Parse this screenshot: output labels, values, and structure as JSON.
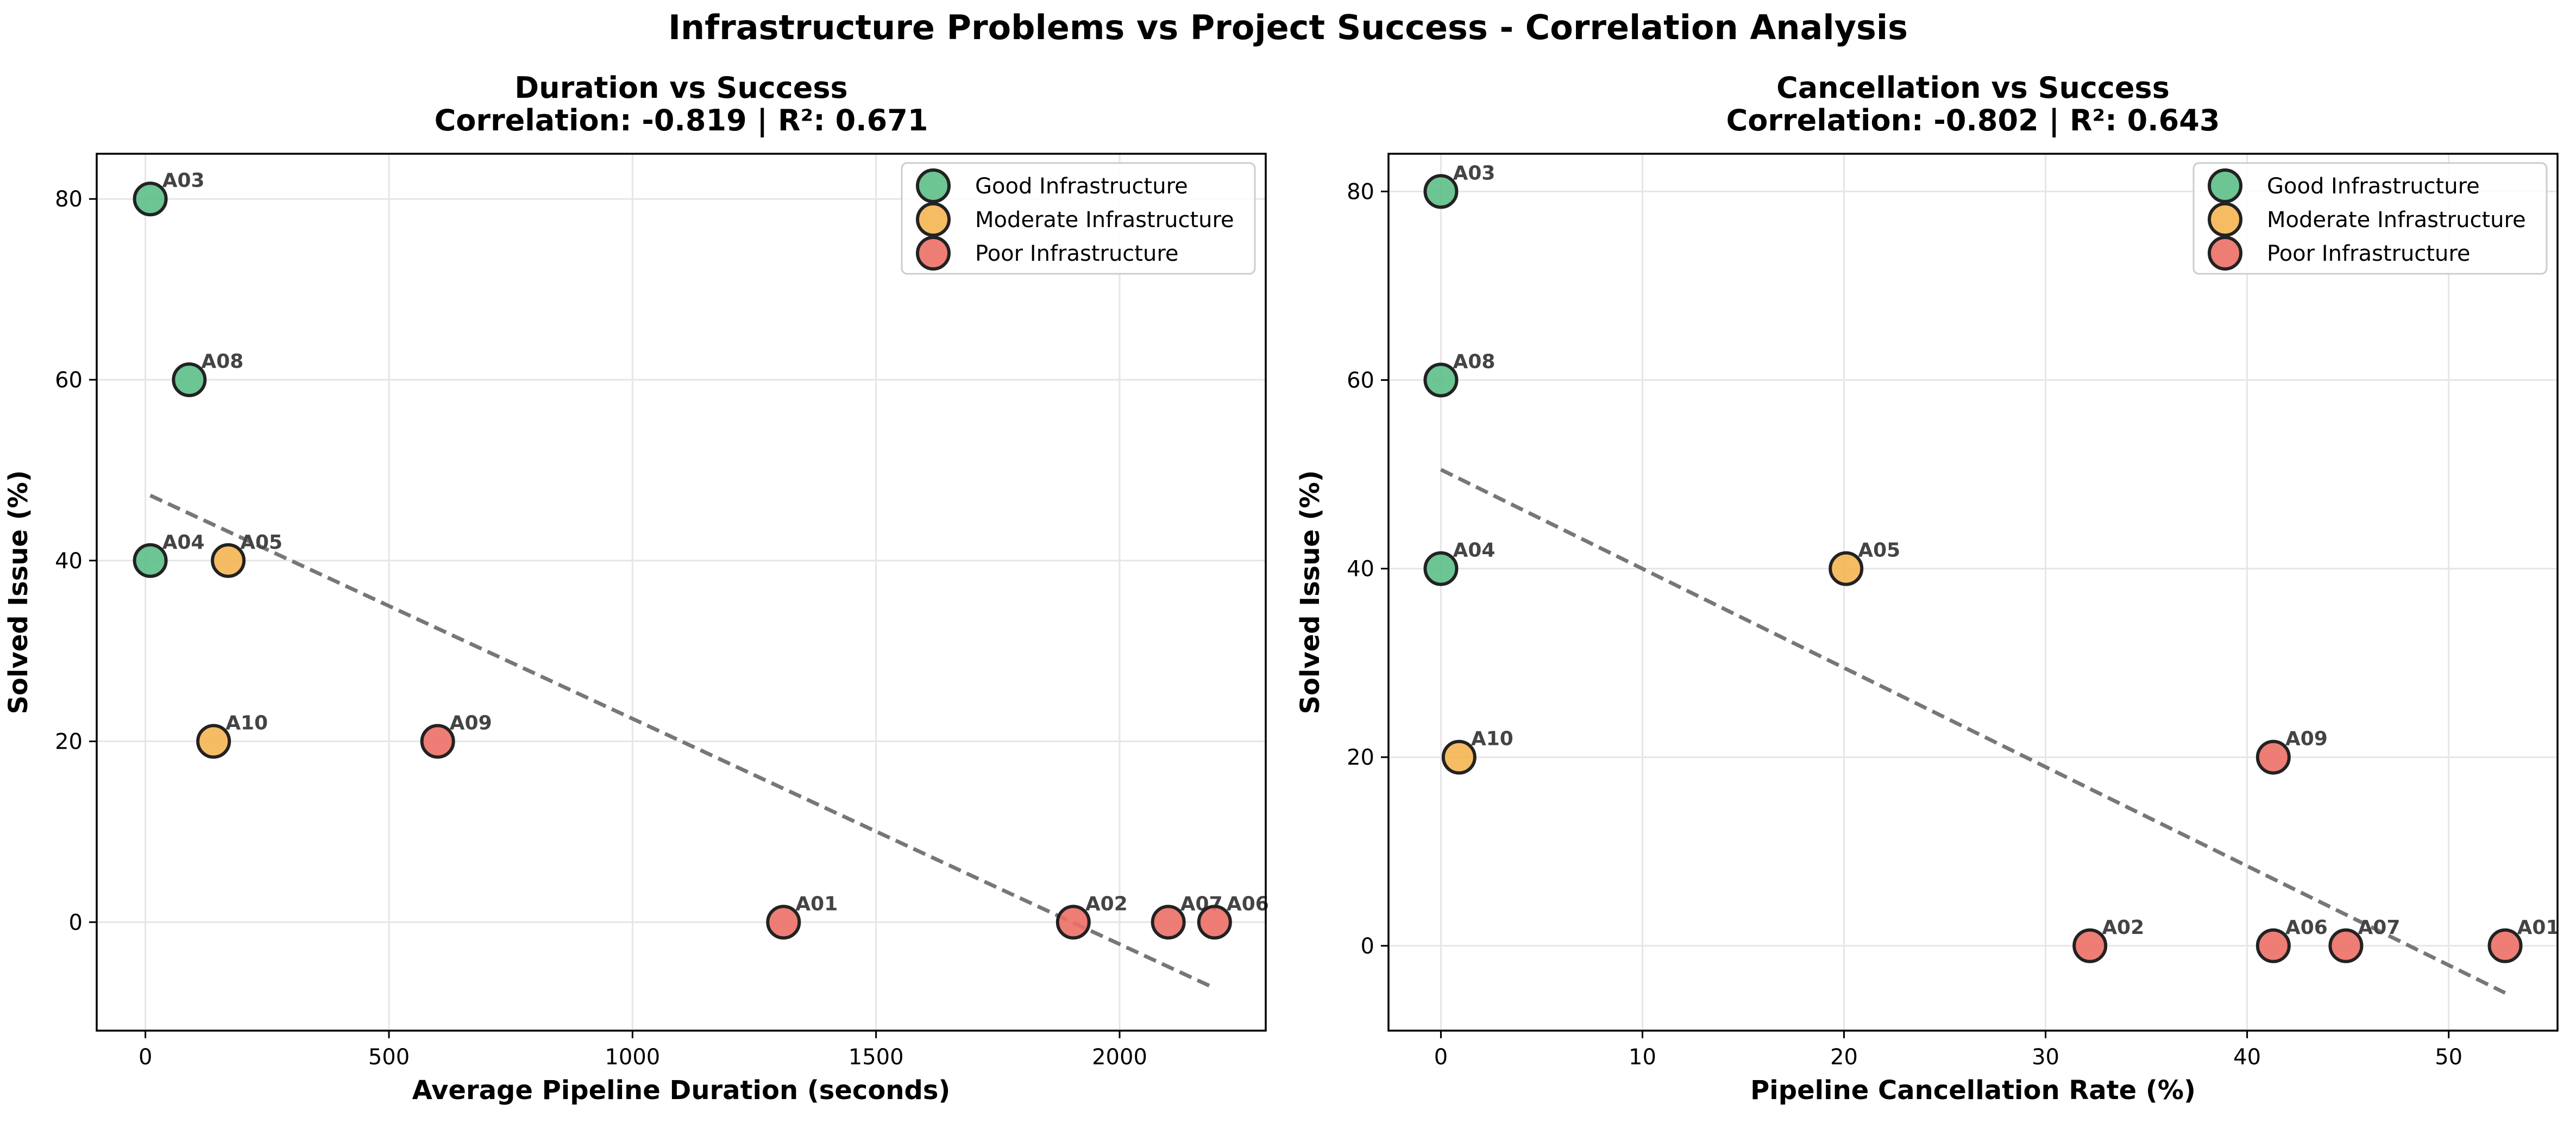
{
  "figure": {
    "title": "Infrastructure Problems vs Project Success - Correlation Analysis"
  },
  "colors": {
    "good": "#5cbf86",
    "moderate": "#f5b553",
    "poor": "#ec6f66",
    "trend": "#777777",
    "marker_edge": "#222222",
    "annotation": "#444444",
    "grid": "#e6e6e6"
  },
  "chart_data": [
    {
      "type": "scatter",
      "title": "Duration vs Success",
      "subtitle": "Correlation: -0.819 | R²: 0.671",
      "xlabel": "Average Pipeline Duration (seconds)",
      "ylabel": "Solved Issue (%)",
      "xlim": [
        -100,
        2300
      ],
      "ylim": [
        -12,
        85
      ],
      "xticks": [
        0,
        500,
        1000,
        1500,
        2000
      ],
      "yticks": [
        0,
        20,
        40,
        60,
        80
      ],
      "grid": true,
      "legend_position": "top-right",
      "series": [
        {
          "name": "Good Infrastructure",
          "color_key": "good",
          "points": [
            {
              "label": "A03",
              "x": 10,
              "y": 80
            },
            {
              "label": "A08",
              "x": 90,
              "y": 60
            },
            {
              "label": "A04",
              "x": 10,
              "y": 40
            }
          ]
        },
        {
          "name": "Moderate Infrastructure",
          "color_key": "moderate",
          "points": [
            {
              "label": "A05",
              "x": 170,
              "y": 40
            },
            {
              "label": "A10",
              "x": 140,
              "y": 20
            }
          ]
        },
        {
          "name": "Poor Infrastructure",
          "color_key": "poor",
          "points": [
            {
              "label": "A09",
              "x": 600,
              "y": 20
            },
            {
              "label": "A01",
              "x": 1310,
              "y": 0
            },
            {
              "label": "A02",
              "x": 1905,
              "y": 0
            },
            {
              "label": "A07",
              "x": 2100,
              "y": 0
            },
            {
              "label": "A06",
              "x": 2195,
              "y": 0
            }
          ]
        }
      ],
      "trendline": {
        "x": [
          10,
          2195
        ],
        "y": [
          47.2,
          -7.3
        ]
      }
    },
    {
      "type": "scatter",
      "title": "Cancellation vs Success",
      "subtitle": "Correlation: -0.802 | R²: 0.643",
      "xlabel": "Pipeline Cancellation Rate (%)",
      "ylabel": "Solved Issue (%)",
      "xlim": [
        -2.6,
        55.4
      ],
      "ylim": [
        -9,
        84
      ],
      "xticks": [
        0,
        10,
        20,
        30,
        40,
        50
      ],
      "yticks": [
        0,
        20,
        40,
        60,
        80
      ],
      "grid": true,
      "legend_position": "top-right",
      "series": [
        {
          "name": "Good Infrastructure",
          "color_key": "good",
          "points": [
            {
              "label": "A03",
              "x": 0,
              "y": 80
            },
            {
              "label": "A08",
              "x": 0,
              "y": 60
            },
            {
              "label": "A04",
              "x": 0,
              "y": 40
            }
          ]
        },
        {
          "name": "Moderate Infrastructure",
          "color_key": "moderate",
          "points": [
            {
              "label": "A05",
              "x": 20.1,
              "y": 40
            },
            {
              "label": "A10",
              "x": 0.9,
              "y": 20
            }
          ]
        },
        {
          "name": "Poor Infrastructure",
          "color_key": "poor",
          "points": [
            {
              "label": "A09",
              "x": 41.3,
              "y": 20
            },
            {
              "label": "A02",
              "x": 32.2,
              "y": 0
            },
            {
              "label": "A06",
              "x": 41.3,
              "y": 0
            },
            {
              "label": "A07",
              "x": 44.9,
              "y": 0
            },
            {
              "label": "A01",
              "x": 52.8,
              "y": 0
            }
          ]
        }
      ],
      "trendline": {
        "x": [
          0,
          52.8
        ],
        "y": [
          50.5,
          -5.0
        ]
      }
    }
  ]
}
